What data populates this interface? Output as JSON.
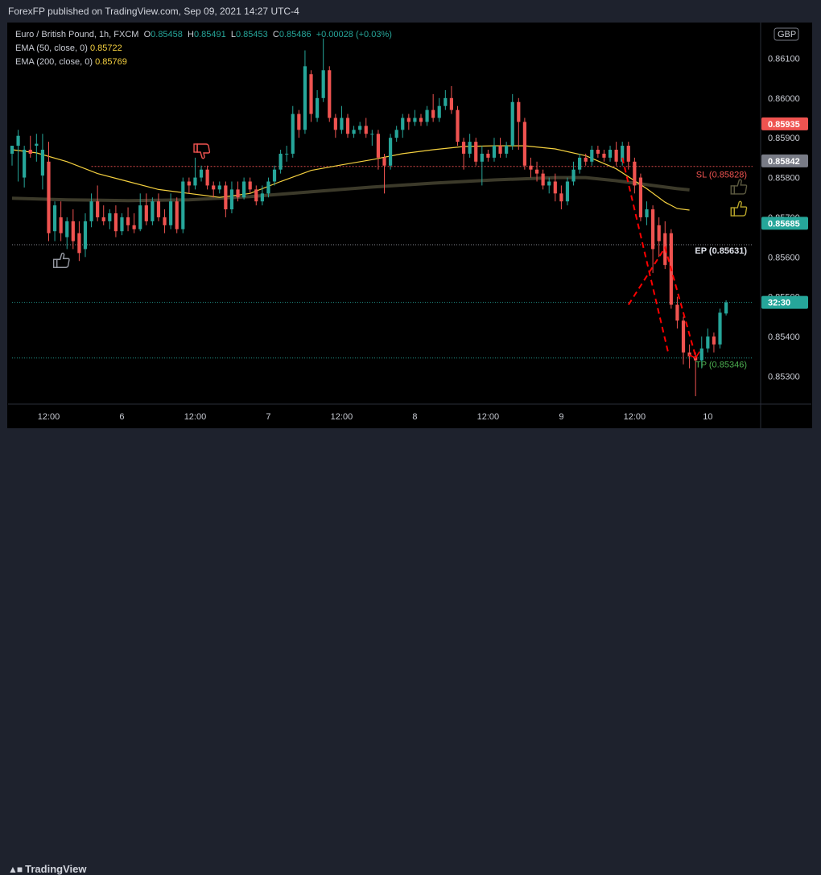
{
  "header": {
    "publisher_line": "ForexFP published on TradingView.com, Sep 09, 2021 14:27 UTC-4"
  },
  "legend": {
    "symbol": "Euro / British Pound, 1h, FXCM",
    "ohlc": {
      "O": "0.85458",
      "H": "0.85491",
      "L": "0.85453",
      "C": "0.85486",
      "change": "+0.00028 (+0.03%)"
    },
    "ema50": {
      "label": "EMA (50, close, 0)",
      "value": "0.85722"
    },
    "ema200": {
      "label": "EMA (200, close, 0)",
      "value": "0.85769"
    }
  },
  "footer": {
    "brand": "TradingView"
  },
  "colors": {
    "up": "#26a69a",
    "down": "#ef5350",
    "ema50": "#f4d03f",
    "ema200": "#3c3a2a",
    "sl": "#ef5350",
    "tp": "#26a69a",
    "ep": "#c9ccd4",
    "projection": "#ff0000"
  },
  "chart_data": {
    "type": "candlestick",
    "currency": "GBP",
    "y_ticks": [
      "0.86100",
      "0.86000",
      "0.85900",
      "0.85800",
      "0.85700",
      "0.85600",
      "0.85500",
      "0.85400",
      "0.85300"
    ],
    "ylim": [
      0.8523,
      0.8619
    ],
    "x_ticks": [
      {
        "label": "12:00",
        "hour": 7
      },
      {
        "label": "6",
        "hour": 19
      },
      {
        "label": "12:00",
        "hour": 31
      },
      {
        "label": "7",
        "hour": 43
      },
      {
        "label": "12:00",
        "hour": 55
      },
      {
        "label": "8",
        "hour": 67
      },
      {
        "label": "12:00",
        "hour": 79
      },
      {
        "label": "9",
        "hour": 91
      },
      {
        "label": "12:00",
        "hour": 103
      },
      {
        "label": "10",
        "hour": 115
      }
    ],
    "xlim": [
      1,
      123
    ],
    "price_tags": [
      {
        "text": "0.85935",
        "value": 0.85935,
        "color": "#ef5350"
      },
      {
        "text": "0.85842",
        "value": 0.85842,
        "color": "#787b86"
      },
      {
        "text": "0.85685",
        "value": 0.85685,
        "color": "#26a69a"
      },
      {
        "text": "32:30",
        "value": 0.85486,
        "color": "#26a69a"
      }
    ],
    "levels": [
      {
        "name": "SL",
        "label": "SL (0.85828)",
        "value": 0.85828,
        "color": "#ef5350",
        "style": "dotted-dense",
        "from_hour": 14
      },
      {
        "name": "EP",
        "label": "EP (0.85631)",
        "value": 0.85631,
        "color": "#9598a1",
        "style": "dotted",
        "from_hour": 1
      },
      {
        "name": "Current",
        "label": "",
        "value": 0.85486,
        "color": "#26a69a",
        "style": "dotted",
        "from_hour": 1
      },
      {
        "name": "TP",
        "label": "TP (0.85346)",
        "value": 0.85346,
        "color": "#26a69a",
        "style": "dotted",
        "from_hour": 1
      }
    ],
    "projection": [
      {
        "hour": 102,
        "price": 0.8548
      },
      {
        "hour": 108,
        "price": 0.85624
      },
      {
        "hour": 113,
        "price": 0.8535
      }
    ],
    "thumbs": [
      {
        "hour": 9,
        "price": 0.8559,
        "dir": "up",
        "color": "#9598a1"
      },
      {
        "hour": 32,
        "price": 0.85868,
        "dir": "down",
        "color": "#ef5350"
      },
      {
        "hour": 120,
        "price": 0.85775,
        "dir": "up",
        "color": "#5c5a40"
      },
      {
        "hour": 120,
        "price": 0.8572,
        "dir": "up",
        "color": "#b8a52a"
      }
    ],
    "ema50": [
      [
        1,
        0.8587
      ],
      [
        5,
        0.85862
      ],
      [
        10,
        0.8584
      ],
      [
        15,
        0.8581
      ],
      [
        20,
        0.8579
      ],
      [
        25,
        0.8577
      ],
      [
        30,
        0.8576
      ],
      [
        35,
        0.8575
      ],
      [
        40,
        0.8576
      ],
      [
        45,
        0.8579
      ],
      [
        50,
        0.85818
      ],
      [
        55,
        0.85832
      ],
      [
        60,
        0.85845
      ],
      [
        65,
        0.8586
      ],
      [
        70,
        0.8587
      ],
      [
        75,
        0.85878
      ],
      [
        80,
        0.8588
      ],
      [
        85,
        0.8588
      ],
      [
        90,
        0.85872
      ],
      [
        95,
        0.85855
      ],
      [
        100,
        0.85822
      ],
      [
        105,
        0.85772
      ],
      [
        108,
        0.85738
      ],
      [
        110,
        0.85722
      ],
      [
        112,
        0.85718
      ]
    ],
    "ema200": [
      [
        1,
        0.85748
      ],
      [
        10,
        0.85744
      ],
      [
        20,
        0.85742
      ],
      [
        30,
        0.85744
      ],
      [
        40,
        0.85752
      ],
      [
        50,
        0.85764
      ],
      [
        60,
        0.85776
      ],
      [
        70,
        0.85786
      ],
      [
        80,
        0.85794
      ],
      [
        90,
        0.858
      ],
      [
        95,
        0.858
      ],
      [
        100,
        0.85792
      ],
      [
        105,
        0.85782
      ],
      [
        110,
        0.85772
      ],
      [
        112,
        0.85769
      ]
    ],
    "candles": [
      [
        1,
        0.8586,
        0.8588,
        0.85875,
        0.8583
      ],
      [
        2,
        0.8588,
        0.85905,
        0.8592,
        0.8579
      ],
      [
        3,
        0.858,
        0.8587,
        0.8588,
        0.85775
      ],
      [
        4,
        0.8587,
        0.8586,
        0.85905,
        0.8585
      ],
      [
        5,
        0.8588,
        0.85885,
        0.8591,
        0.8584
      ],
      [
        6,
        0.85805,
        0.8587,
        0.8591,
        0.8577
      ],
      [
        7,
        0.8584,
        0.8566,
        0.8589,
        0.8564
      ],
      [
        8,
        0.85665,
        0.8573,
        0.8574,
        0.8564
      ],
      [
        9,
        0.857,
        0.8566,
        0.8574,
        0.8564
      ],
      [
        10,
        0.8565,
        0.8569,
        0.857,
        0.8562
      ],
      [
        11,
        0.8569,
        0.8564,
        0.8572,
        0.8562
      ],
      [
        12,
        0.8566,
        0.8561,
        0.8569,
        0.8559
      ],
      [
        13,
        0.8562,
        0.8569,
        0.8571,
        0.856
      ],
      [
        14,
        0.8569,
        0.8574,
        0.8576,
        0.85675
      ],
      [
        15,
        0.8574,
        0.857,
        0.8578,
        0.8569
      ],
      [
        16,
        0.857,
        0.8569,
        0.8573,
        0.8568
      ],
      [
        17,
        0.8569,
        0.8571,
        0.8572,
        0.8567
      ],
      [
        18,
        0.8571,
        0.85665,
        0.8573,
        0.8565
      ],
      [
        19,
        0.85665,
        0.857,
        0.8571,
        0.85655
      ],
      [
        20,
        0.857,
        0.8568,
        0.85725,
        0.85665
      ],
      [
        21,
        0.8568,
        0.8567,
        0.8571,
        0.8566
      ],
      [
        22,
        0.8567,
        0.8573,
        0.8576,
        0.85665
      ],
      [
        23,
        0.8573,
        0.8569,
        0.8576,
        0.8568
      ],
      [
        24,
        0.8569,
        0.8574,
        0.8575,
        0.8568
      ],
      [
        25,
        0.8574,
        0.857,
        0.8576,
        0.8569
      ],
      [
        26,
        0.857,
        0.8568,
        0.8572,
        0.8566
      ],
      [
        27,
        0.8568,
        0.8574,
        0.8576,
        0.8567
      ],
      [
        28,
        0.8574,
        0.8567,
        0.8575,
        0.8566
      ],
      [
        29,
        0.8567,
        0.8579,
        0.858,
        0.8566
      ],
      [
        30,
        0.8579,
        0.8578,
        0.858,
        0.8576
      ],
      [
        31,
        0.8578,
        0.858,
        0.8585,
        0.8577
      ],
      [
        32,
        0.858,
        0.8582,
        0.8583,
        0.8579
      ],
      [
        33,
        0.8582,
        0.8578,
        0.8583,
        0.8577
      ],
      [
        34,
        0.8578,
        0.8577,
        0.8579,
        0.8575
      ],
      [
        35,
        0.8577,
        0.8578,
        0.8579,
        0.8576
      ],
      [
        36,
        0.8578,
        0.8572,
        0.8579,
        0.857
      ],
      [
        37,
        0.8572,
        0.8577,
        0.8579,
        0.8571
      ],
      [
        38,
        0.8577,
        0.8575,
        0.8579,
        0.8574
      ],
      [
        39,
        0.8575,
        0.8579,
        0.858,
        0.85745
      ],
      [
        40,
        0.8579,
        0.8577,
        0.858,
        0.8576
      ],
      [
        41,
        0.8577,
        0.8574,
        0.8578,
        0.8573
      ],
      [
        42,
        0.8574,
        0.8576,
        0.8578,
        0.8573
      ],
      [
        43,
        0.8576,
        0.8579,
        0.858,
        0.8575
      ],
      [
        44,
        0.8579,
        0.8582,
        0.8583,
        0.8578
      ],
      [
        45,
        0.8582,
        0.8586,
        0.8587,
        0.8581
      ],
      [
        46,
        0.8586,
        0.8586,
        0.8588,
        0.8584
      ],
      [
        47,
        0.8586,
        0.8596,
        0.8598,
        0.8585
      ],
      [
        48,
        0.8596,
        0.8592,
        0.8597,
        0.859
      ],
      [
        49,
        0.8592,
        0.8608,
        0.8612,
        0.8591
      ],
      [
        50,
        0.8606,
        0.8596,
        0.8607,
        0.8594
      ],
      [
        51,
        0.8595,
        0.86,
        0.8602,
        0.8594
      ],
      [
        52,
        0.86,
        0.8607,
        0.8615,
        0.8599
      ],
      [
        53,
        0.8607,
        0.8595,
        0.8608,
        0.8594
      ],
      [
        54,
        0.8595,
        0.8592,
        0.8596,
        0.859
      ],
      [
        55,
        0.8592,
        0.8595,
        0.8598,
        0.8591
      ],
      [
        56,
        0.8595,
        0.8591,
        0.8596,
        0.859
      ],
      [
        57,
        0.8591,
        0.8592,
        0.8593,
        0.859
      ],
      [
        58,
        0.8592,
        0.8593,
        0.8594,
        0.8591
      ],
      [
        59,
        0.8593,
        0.8591,
        0.8595,
        0.859
      ],
      [
        60,
        0.8591,
        0.8591,
        0.8592,
        0.8588
      ],
      [
        61,
        0.8591,
        0.8585,
        0.8592,
        0.8582
      ],
      [
        62,
        0.8585,
        0.8583,
        0.8586,
        0.8576
      ],
      [
        63,
        0.8583,
        0.859,
        0.8591,
        0.8582
      ],
      [
        64,
        0.859,
        0.8592,
        0.8593,
        0.8589
      ],
      [
        65,
        0.8592,
        0.8595,
        0.8596,
        0.859
      ],
      [
        66,
        0.8595,
        0.8594,
        0.8596,
        0.8592
      ],
      [
        67,
        0.8594,
        0.8595,
        0.8597,
        0.8593
      ],
      [
        68,
        0.8595,
        0.8594,
        0.8596,
        0.8593
      ],
      [
        69,
        0.8594,
        0.8597,
        0.8598,
        0.8593
      ],
      [
        70,
        0.8597,
        0.8595,
        0.8601,
        0.8594
      ],
      [
        71,
        0.8595,
        0.8598,
        0.86,
        0.8594
      ],
      [
        72,
        0.8598,
        0.86,
        0.8602,
        0.8597
      ],
      [
        73,
        0.86,
        0.8597,
        0.8603,
        0.8596
      ],
      [
        74,
        0.8597,
        0.8589,
        0.8598,
        0.8588
      ],
      [
        75,
        0.8589,
        0.8586,
        0.859,
        0.8582
      ],
      [
        76,
        0.8586,
        0.8589,
        0.8591,
        0.8585
      ],
      [
        77,
        0.8589,
        0.8584,
        0.859,
        0.8583
      ],
      [
        78,
        0.8584,
        0.8586,
        0.8588,
        0.8578
      ],
      [
        79,
        0.8586,
        0.8585,
        0.8587,
        0.8584
      ],
      [
        80,
        0.8585,
        0.8588,
        0.859,
        0.8584
      ],
      [
        81,
        0.8588,
        0.8586,
        0.859,
        0.8585
      ],
      [
        82,
        0.8586,
        0.8588,
        0.8589,
        0.8585
      ],
      [
        83,
        0.8588,
        0.8599,
        0.8601,
        0.8587
      ],
      [
        84,
        0.8599,
        0.8594,
        0.86,
        0.8587
      ],
      [
        85,
        0.8594,
        0.8583,
        0.8595,
        0.8582
      ],
      [
        86,
        0.8583,
        0.8582,
        0.8585,
        0.858
      ],
      [
        87,
        0.8582,
        0.8581,
        0.8584,
        0.8579
      ],
      [
        88,
        0.8581,
        0.8578,
        0.8582,
        0.8577
      ],
      [
        89,
        0.8578,
        0.8579,
        0.858,
        0.8576
      ],
      [
        90,
        0.8579,
        0.8576,
        0.8581,
        0.8574
      ],
      [
        91,
        0.8576,
        0.8574,
        0.8578,
        0.8572
      ],
      [
        92,
        0.8574,
        0.8579,
        0.858,
        0.8573
      ],
      [
        93,
        0.8579,
        0.8582,
        0.8584,
        0.8578
      ],
      [
        94,
        0.8582,
        0.8585,
        0.8586,
        0.8581
      ],
      [
        95,
        0.8585,
        0.8584,
        0.8586,
        0.8583
      ],
      [
        96,
        0.8584,
        0.8587,
        0.8588,
        0.8583
      ],
      [
        97,
        0.8587,
        0.8586,
        0.8588,
        0.8585
      ],
      [
        98,
        0.8586,
        0.8585,
        0.8587,
        0.8584
      ],
      [
        99,
        0.8585,
        0.8587,
        0.8588,
        0.8584
      ],
      [
        100,
        0.8587,
        0.8584,
        0.8589,
        0.8583
      ],
      [
        101,
        0.8584,
        0.8588,
        0.8589,
        0.8583
      ],
      [
        102,
        0.8588,
        0.8584,
        0.8589,
        0.8582
      ],
      [
        103,
        0.8584,
        0.8578,
        0.8585,
        0.8576
      ],
      [
        104,
        0.858,
        0.857,
        0.8581,
        0.8569
      ],
      [
        105,
        0.857,
        0.8572,
        0.8574,
        0.8568
      ],
      [
        106,
        0.8572,
        0.8562,
        0.8573,
        0.8556
      ],
      [
        107,
        0.8568,
        0.8564,
        0.857,
        0.856
      ],
      [
        108,
        0.8566,
        0.8558,
        0.8569,
        0.8557
      ],
      [
        109,
        0.8566,
        0.8548,
        0.8567,
        0.8547
      ],
      [
        110,
        0.8548,
        0.8544,
        0.855,
        0.8542
      ],
      [
        111,
        0.8544,
        0.8536,
        0.8545,
        0.8533
      ],
      [
        112,
        0.8536,
        0.8535,
        0.8538,
        0.8532
      ],
      [
        113,
        0.8535,
        0.8534,
        0.8536,
        0.8525
      ],
      [
        114,
        0.8534,
        0.8537,
        0.854,
        0.8532
      ],
      [
        115,
        0.8537,
        0.854,
        0.8542,
        0.8536
      ],
      [
        116,
        0.854,
        0.8538,
        0.8541,
        0.8536
      ],
      [
        117,
        0.8538,
        0.8546,
        0.8547,
        0.8537
      ],
      [
        118,
        0.85458,
        0.85486,
        0.85491,
        0.85453
      ]
    ]
  }
}
